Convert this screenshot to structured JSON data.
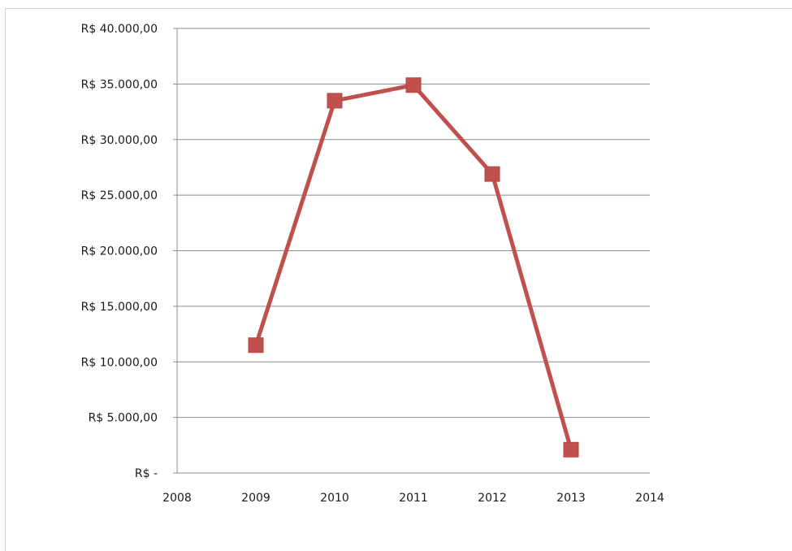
{
  "chart_data": {
    "type": "line",
    "title": "",
    "xlabel": "",
    "ylabel": "",
    "x": [
      2009,
      2010,
      2011,
      2012,
      2013
    ],
    "series": [
      {
        "values": [
          11500,
          33500,
          34900,
          26900,
          2100
        ],
        "color": "#c0504d"
      }
    ],
    "xlim": [
      2008,
      2014
    ],
    "ylim": [
      0,
      40000
    ],
    "x_ticks": [
      2008,
      2009,
      2010,
      2011,
      2012,
      2013,
      2014
    ],
    "x_tick_labels": [
      "2008",
      "2009",
      "2010",
      "2011",
      "2012",
      "2013",
      "2014"
    ],
    "y_ticks": [
      0,
      5000,
      10000,
      15000,
      20000,
      25000,
      30000,
      35000,
      40000
    ],
    "y_tick_labels": [
      "R$ -",
      "R$ 5.000,00",
      "R$ 10.000,00",
      "R$ 15.000,00",
      "R$ 20.000,00",
      "R$ 25.000,00",
      "R$ 30.000,00",
      "R$ 35.000,00",
      "R$ 40.000,00"
    ],
    "grid": "horizontal",
    "legend": "none",
    "marker": "square"
  }
}
